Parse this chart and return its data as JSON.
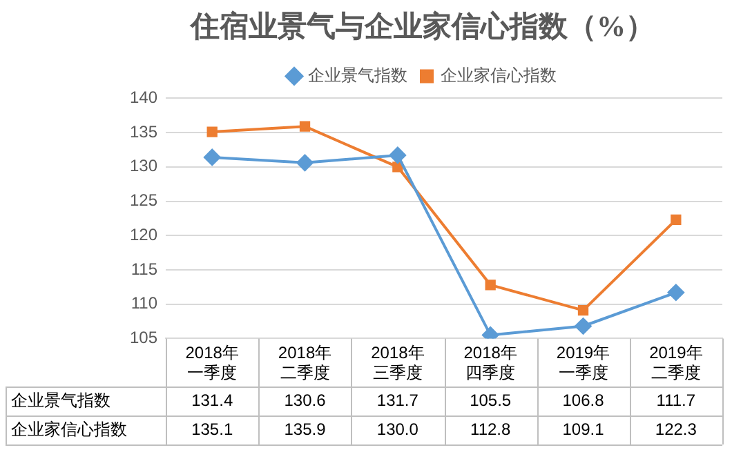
{
  "chart_data": {
    "type": "line",
    "title": "住宿业景气与企业家信心指数（%）",
    "categories": [
      "2018年一季度",
      "2018年二季度",
      "2018年三季度",
      "2018年四季度",
      "2019年一季度",
      "2019年二季度"
    ],
    "series": [
      {
        "name": "企业景气指数",
        "color": "#5b9bd5",
        "marker": "diamond",
        "values": [
          131.4,
          130.6,
          131.7,
          105.5,
          106.8,
          111.7
        ],
        "value_labels": [
          "131.4",
          "130.6",
          "131.7",
          "105.5",
          "106.8",
          "111.7"
        ]
      },
      {
        "name": "企业家信心指数",
        "color": "#ed7d31",
        "marker": "square",
        "values": [
          135.1,
          135.9,
          130.0,
          112.8,
          109.1,
          122.3
        ],
        "value_labels": [
          "135.1",
          "135.9",
          "130.0",
          "112.8",
          "109.1",
          "122.3"
        ]
      }
    ],
    "ylim": [
      105,
      140
    ],
    "yticks": [
      105,
      110,
      115,
      120,
      125,
      130,
      135,
      140
    ],
    "grid": "y",
    "legend": "top"
  }
}
